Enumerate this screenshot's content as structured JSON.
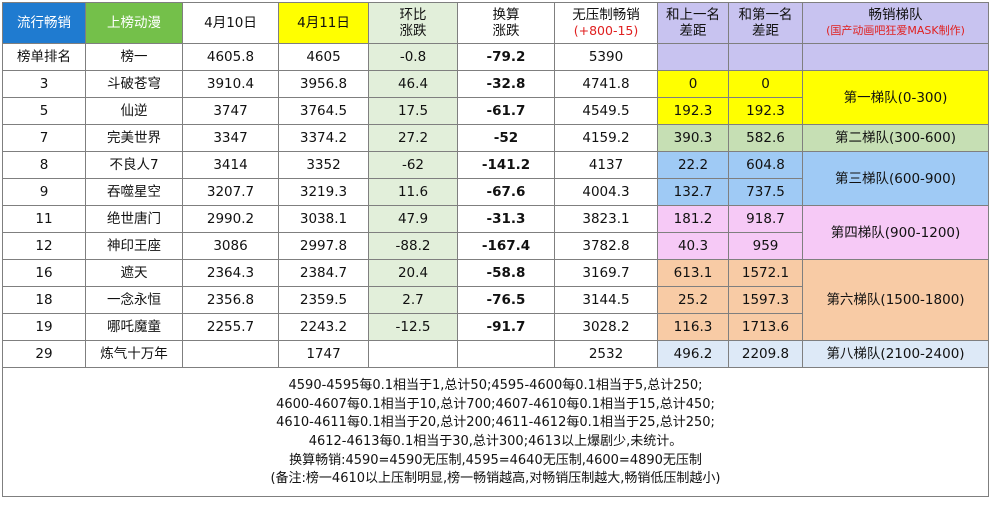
{
  "headers": {
    "rank_type": "流行畅销",
    "anime": "上榜动漫",
    "apr10": "4月10日",
    "apr11": "4月11日",
    "ratio_l1": "环比",
    "ratio_l2": "涨跌",
    "conv_l1": "换算",
    "conv_l2": "涨跌",
    "unsup_l1": "无压制畅销",
    "unsup_l2": "(+800-15)",
    "gap_prev_l1": "和上一名",
    "gap_prev_l2": "差距",
    "gap_first_l1": "和第一名",
    "gap_first_l2": "差距",
    "tier_l1": "畅销梯队",
    "tier_l2": "(国产动画吧狂爱MASK制作)"
  },
  "subheader": {
    "rank": "榜单排名",
    "anime": "榜一",
    "apr10": "4605.8",
    "apr11": "4605",
    "ratio": "-0.8",
    "conv": "-79.2",
    "unsup": "5390"
  },
  "rows": [
    {
      "rank": "3",
      "anime": "斗破苍穹",
      "apr10": "3910.4",
      "apr11": "3956.8",
      "ratio": "46.4",
      "conv": "-32.8",
      "unsup": "4741.8",
      "gap_prev": "0",
      "gap_first": "0"
    },
    {
      "rank": "5",
      "anime": "仙逆",
      "apr10": "3747",
      "apr11": "3764.5",
      "ratio": "17.5",
      "conv": "-61.7",
      "unsup": "4549.5",
      "gap_prev": "192.3",
      "gap_first": "192.3"
    },
    {
      "rank": "7",
      "anime": "完美世界",
      "apr10": "3347",
      "apr11": "3374.2",
      "ratio": "27.2",
      "conv": "-52",
      "unsup": "4159.2",
      "gap_prev": "390.3",
      "gap_first": "582.6"
    },
    {
      "rank": "8",
      "anime": "不良人7",
      "apr10": "3414",
      "apr11": "3352",
      "ratio": "-62",
      "conv": "-141.2",
      "unsup": "4137",
      "gap_prev": "22.2",
      "gap_first": "604.8"
    },
    {
      "rank": "9",
      "anime": "吞噬星空",
      "apr10": "3207.7",
      "apr11": "3219.3",
      "ratio": "11.6",
      "conv": "-67.6",
      "unsup": "4004.3",
      "gap_prev": "132.7",
      "gap_first": "737.5"
    },
    {
      "rank": "11",
      "anime": "绝世唐门",
      "apr10": "2990.2",
      "apr11": "3038.1",
      "ratio": "47.9",
      "conv": "-31.3",
      "unsup": "3823.1",
      "gap_prev": "181.2",
      "gap_first": "918.7"
    },
    {
      "rank": "12",
      "anime": "神印王座",
      "apr10": "3086",
      "apr11": "2997.8",
      "ratio": "-88.2",
      "conv": "-167.4",
      "unsup": "3782.8",
      "gap_prev": "40.3",
      "gap_first": "959"
    },
    {
      "rank": "16",
      "anime": "遮天",
      "apr10": "2364.3",
      "apr11": "2384.7",
      "ratio": "20.4",
      "conv": "-58.8",
      "unsup": "3169.7",
      "gap_prev": "613.1",
      "gap_first": "1572.1"
    },
    {
      "rank": "18",
      "anime": "一念永恒",
      "apr10": "2356.8",
      "apr11": "2359.5",
      "ratio": "2.7",
      "conv": "-76.5",
      "unsup": "3144.5",
      "gap_prev": "25.2",
      "gap_first": "1597.3"
    },
    {
      "rank": "19",
      "anime": "哪吒魔童",
      "apr10": "2255.7",
      "apr11": "2243.2",
      "ratio": "-12.5",
      "conv": "-91.7",
      "unsup": "3028.2",
      "gap_prev": "116.3",
      "gap_first": "1713.6"
    },
    {
      "rank": "29",
      "anime": "炼气十万年",
      "apr10": "",
      "apr11": "1747",
      "ratio": "",
      "conv": "",
      "unsup": "2532",
      "gap_prev": "496.2",
      "gap_first": "2209.8"
    }
  ],
  "tiers": {
    "t1": "第一梯队(0-300)",
    "t2": "第二梯队(300-600)",
    "t3": "第三梯队(600-900)",
    "t4": "第四梯队(900-1200)",
    "t6": "第六梯队(1500-1800)",
    "t8": "第八梯队(2100-2400)"
  },
  "notes": [
    "4590-4595每0.1相当于1,总计50;4595-4600每0.1相当于5,总计250;",
    "4600-4607每0.1相当于10,总计700;4607-4610每0.1相当于15,总计450;",
    "4610-4611每0.1相当于20,总计200;4611-4612每0.1相当于25,总计250;",
    "4612-4613每0.1相当于30,总计300;4613以上爆剧少,未统计。",
    "换算畅销:4590=4590无压制,4595=4640无压制,4600=4890无压制",
    "(备注:榜一4610以上压制明显,榜一畅销越高,对畅销压制越大,畅销低压制越小)"
  ],
  "colors": {
    "header_blue": "#1f7bd0",
    "header_green": "#74c04a",
    "highlight_yellow": "#ffff00",
    "change_green": "#0a8a2a",
    "note_red": "#e02020"
  }
}
